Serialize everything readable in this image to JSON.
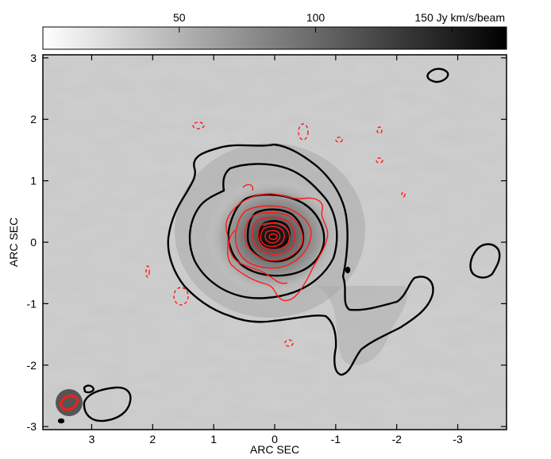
{
  "chart_data": {
    "type": "heatmap",
    "title": "",
    "xlabel": "ARC SEC",
    "ylabel": "ARC SEC",
    "xlim": [
      3.8,
      -3.8
    ],
    "ylim": [
      -3.05,
      3.05
    ],
    "x_ticks": [
      3,
      2,
      1,
      0,
      -1,
      -2,
      -3
    ],
    "x_tick_labels": [
      "3",
      "2",
      "1",
      "0",
      "-1",
      "-2",
      "-3"
    ],
    "y_ticks": [
      3,
      2,
      1,
      0,
      -1,
      -2,
      -3
    ],
    "y_tick_labels": [
      "3",
      "2",
      "1",
      "0",
      "-1",
      "-2",
      "-3"
    ],
    "colorbar": {
      "range": [
        0,
        170
      ],
      "ticks": [
        50,
        100,
        150
      ],
      "tick_labels": [
        "50",
        "100",
        "150 Jy km/s/beam"
      ],
      "colormap": "white-to-black grayscale"
    },
    "peak_position": [
      0,
      0
    ],
    "black_contours": {
      "description": "zeroth-moment emission contours",
      "color": "#000000",
      "levels_count": 5
    },
    "red_contours": {
      "description": "compact emission contours with dashed negative levels",
      "color": "#ff0000",
      "levels_count": 8
    },
    "beams": {
      "large_beam_color": "#555555",
      "small_beam_color": "#ff0000",
      "position": [
        3.3,
        -2.65
      ]
    },
    "grid": false
  }
}
